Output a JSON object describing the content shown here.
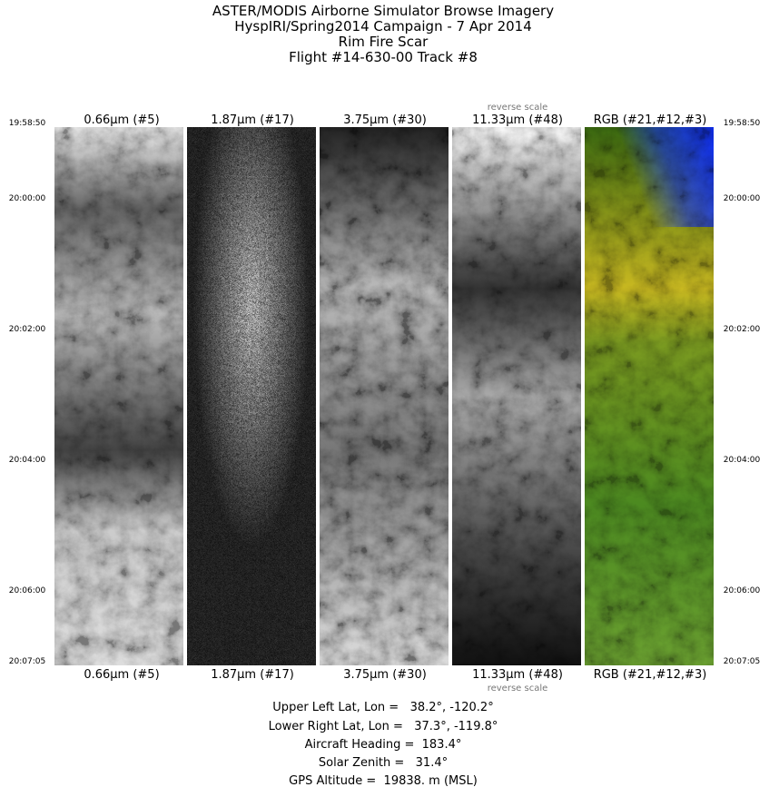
{
  "header": {
    "lines": [
      "ASTER/MODIS Airborne Simulator Browse Imagery",
      "HyspIRI/Spring2014 Campaign - 7 Apr 2014",
      "Rim Fire Scar",
      "Flight #14-630-00 Track #8"
    ]
  },
  "panels": [
    {
      "label": "0.66µm (#5)"
    },
    {
      "label": "1.87µm (#17)"
    },
    {
      "label": "3.75µm (#30)"
    },
    {
      "label": "11.33µm (#48)",
      "note": "reverse scale"
    },
    {
      "label": "RGB (#21,#12,#3)"
    }
  ],
  "time_labels": [
    "19:58:50",
    "20:00:00",
    "20:02:00",
    "20:04:00",
    "20:06:00",
    "20:07:05"
  ],
  "footer": {
    "lines": [
      "Upper Left Lat, Lon =   38.2°, -120.2°",
      "Lower Right Lat, Lon =   37.3°, -119.8°",
      "Aircraft Heading =  183.4°",
      "Solar Zenith =   31.4°",
      "GPS Altitude =  19838. m (MSL)"
    ]
  }
}
